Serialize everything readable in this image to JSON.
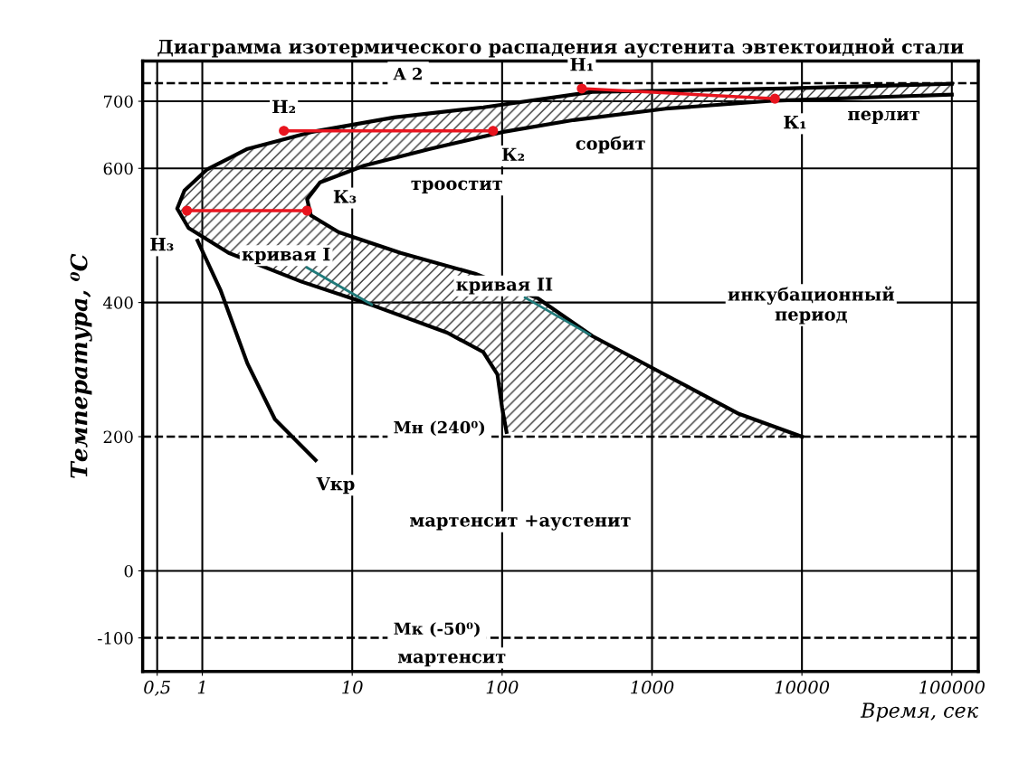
{
  "chart_data": {
    "type": "line",
    "title": "Диаграмма изотермического распадения аустенита эвтектоидной стали",
    "xlabel": "Время, сек",
    "ylabel": "Температура, ⁰C",
    "log": "x",
    "grid": true,
    "legend": false,
    "xlim": [
      0.4,
      150000
    ],
    "xticks": [
      {
        "value": 0.5,
        "label": "0,5"
      },
      1,
      10,
      100,
      1000,
      10000,
      100000
    ],
    "ylim": [
      -150,
      760
    ],
    "yticks": [
      -100,
      0,
      200,
      400,
      600,
      700
    ],
    "series": [
      {
        "color": "#000000",
        "x": [
          100000,
          7600,
          400,
          75,
          19,
          5.3,
          2,
          1.07,
          0.76,
          0.68,
          0.81,
          1.5,
          4.6,
          14,
          43,
          75,
          93,
          100,
          107
        ],
        "values": [
          726,
          719,
          714,
          691,
          676,
          654,
          629,
          598,
          567,
          540,
          511,
          474,
          431,
          395,
          355,
          326,
          293,
          243,
          207
        ]
      },
      {
        "color": "#000000",
        "x": [
          100000,
          6600,
          1230,
          300,
          100,
          33,
          12,
          6.1,
          5,
          5.3,
          8.1,
          21,
          66,
          174,
          400,
          1230,
          3800,
          10000
        ],
        "values": [
          710,
          701,
          689,
          672,
          654,
          629,
          604,
          579,
          554,
          530,
          505,
          474,
          443,
          406,
          350,
          292,
          234,
          200
        ]
      },
      {
        "color": "#000000",
        "x": [
          0.93,
          1.32,
          2.0,
          3.05,
          5.7
        ],
        "values": [
          492,
          419,
          309,
          226,
          165
        ]
      },
      {
        "color": "#e8141e",
        "marker": "circle",
        "x": [
          340,
          6600
        ],
        "values": [
          719,
          704
        ]
      },
      {
        "color": "#e8141e",
        "marker": "circle",
        "x": [
          3.5,
          87
        ],
        "values": [
          656,
          656
        ]
      },
      {
        "color": "#e8141e",
        "marker": "circle",
        "x": [
          0.79,
          5
        ],
        "values": [
          537,
          537
        ]
      }
    ],
    "ref_lines": [
      {
        "axis": "y",
        "value": 727,
        "label": "A 2",
        "line_style": "dashed"
      },
      {
        "axis": "y",
        "value": 200,
        "label": "Мн (240⁰)",
        "line_style": "dashed"
      },
      {
        "axis": "y",
        "value": -100,
        "label": "Мк (-50⁰)",
        "line_style": "dashed"
      }
    ],
    "annotations": [
      {
        "text": "Н₁",
        "x": 340,
        "y": 719
      },
      {
        "text": "К₁",
        "x": 6600,
        "y": 704
      },
      {
        "text": "Н₂",
        "x": 3.5,
        "y": 656
      },
      {
        "text": "К₂",
        "x": 87,
        "y": 656
      },
      {
        "text": "Н₃",
        "x": 0.79,
        "y": 537
      },
      {
        "text": "К₃",
        "x": 5,
        "y": 537
      },
      "перлит",
      "сорбит",
      "троостит",
      {
        "text": "кривая II",
        "x": 400,
        "y": 350
      },
      {
        "text": "кривая I",
        "x": 14,
        "y": 395
      },
      "инкубационный\nпериод",
      {
        "text": "Vкр",
        "x": 5.7,
        "y": 165
      },
      "мартенсит +аустенит",
      "мартенсит"
    ]
  }
}
